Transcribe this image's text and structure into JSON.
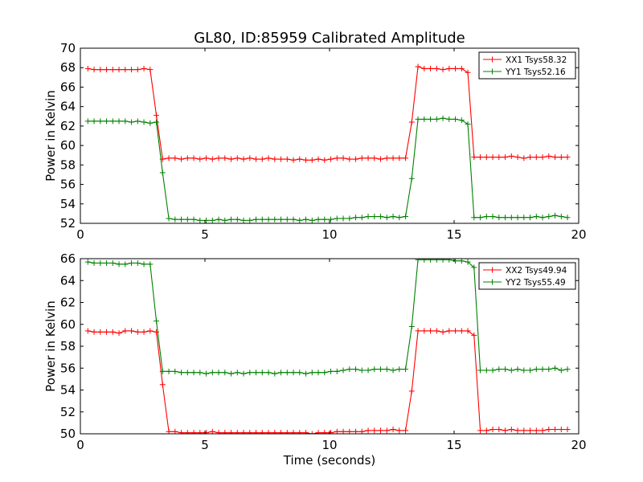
{
  "figure": {
    "title": "GL80, ID:85959 Calibrated Amplitude",
    "xlabel": "Time (seconds)"
  },
  "colors": {
    "red": "#ff0000",
    "green": "#008000",
    "axes": "#000000",
    "background": "#ffffff"
  },
  "chart_data": [
    {
      "type": "line",
      "title": "GL80, ID:85959 Calibrated Amplitude",
      "xlabel": "",
      "ylabel": "Power in Kelvin",
      "xlim": [
        0,
        20
      ],
      "ylim": [
        52,
        70
      ],
      "xticks": [
        0,
        5,
        10,
        15,
        20
      ],
      "yticks": [
        52,
        54,
        56,
        58,
        60,
        62,
        64,
        66,
        68,
        70
      ],
      "grid": false,
      "legend_position": "top-right",
      "series": [
        {
          "name": "XX1 Tsys58.32",
          "color": "#ff0000",
          "marker": "+",
          "x": [
            0.3,
            0.55,
            0.8,
            1.05,
            1.3,
            1.55,
            1.8,
            2.05,
            2.3,
            2.55,
            2.8,
            3.05,
            3.3,
            3.55,
            3.8,
            4.05,
            4.3,
            4.55,
            4.8,
            5.05,
            5.3,
            5.55,
            5.8,
            6.05,
            6.3,
            6.55,
            6.8,
            7.05,
            7.3,
            7.55,
            7.8,
            8.05,
            8.3,
            8.55,
            8.8,
            9.05,
            9.3,
            9.55,
            9.8,
            10.05,
            10.3,
            10.55,
            10.8,
            11.05,
            11.3,
            11.55,
            11.8,
            12.05,
            12.3,
            12.55,
            12.8,
            13.05,
            13.3,
            13.55,
            13.8,
            14.05,
            14.3,
            14.55,
            14.8,
            15.05,
            15.3,
            15.55,
            15.8,
            16.05,
            16.3,
            16.55,
            16.8,
            17.05,
            17.3,
            17.55,
            17.8,
            18.05,
            18.3,
            18.55,
            18.8,
            19.05,
            19.3,
            19.55
          ],
          "values": [
            67.9,
            67.8,
            67.8,
            67.8,
            67.8,
            67.8,
            67.8,
            67.8,
            67.8,
            67.9,
            67.8,
            63.1,
            58.6,
            58.7,
            58.7,
            58.6,
            58.7,
            58.7,
            58.6,
            58.7,
            58.6,
            58.7,
            58.7,
            58.6,
            58.7,
            58.6,
            58.7,
            58.6,
            58.6,
            58.7,
            58.6,
            58.6,
            58.6,
            58.5,
            58.6,
            58.5,
            58.5,
            58.6,
            58.5,
            58.6,
            58.7,
            58.7,
            58.6,
            58.6,
            58.7,
            58.7,
            58.7,
            58.6,
            58.7,
            58.7,
            58.7,
            58.7,
            62.4,
            68.1,
            67.9,
            67.9,
            67.9,
            67.8,
            67.9,
            67.9,
            67.9,
            67.5,
            58.8,
            58.8,
            58.8,
            58.8,
            58.8,
            58.8,
            58.9,
            58.8,
            58.7,
            58.8,
            58.8,
            58.8,
            58.9,
            58.8,
            58.8,
            58.8
          ]
        },
        {
          "name": "YY1 Tsys52.16",
          "color": "#008000",
          "marker": "+",
          "x": [
            0.3,
            0.55,
            0.8,
            1.05,
            1.3,
            1.55,
            1.8,
            2.05,
            2.3,
            2.55,
            2.8,
            3.05,
            3.3,
            3.55,
            3.8,
            4.05,
            4.3,
            4.55,
            4.8,
            5.05,
            5.3,
            5.55,
            5.8,
            6.05,
            6.3,
            6.55,
            6.8,
            7.05,
            7.3,
            7.55,
            7.8,
            8.05,
            8.3,
            8.55,
            8.8,
            9.05,
            9.3,
            9.55,
            9.8,
            10.05,
            10.3,
            10.55,
            10.8,
            11.05,
            11.3,
            11.55,
            11.8,
            12.05,
            12.3,
            12.55,
            12.8,
            13.05,
            13.3,
            13.55,
            13.8,
            14.05,
            14.3,
            14.55,
            14.8,
            15.05,
            15.3,
            15.55,
            15.8,
            16.05,
            16.3,
            16.55,
            16.8,
            17.05,
            17.3,
            17.55,
            17.8,
            18.05,
            18.3,
            18.55,
            18.8,
            19.05,
            19.3,
            19.55
          ],
          "values": [
            62.5,
            62.5,
            62.5,
            62.5,
            62.5,
            62.5,
            62.5,
            62.4,
            62.5,
            62.4,
            62.3,
            62.4,
            57.2,
            52.5,
            52.4,
            52.4,
            52.4,
            52.4,
            52.3,
            52.3,
            52.3,
            52.4,
            52.3,
            52.4,
            52.4,
            52.3,
            52.3,
            52.4,
            52.4,
            52.4,
            52.4,
            52.4,
            52.4,
            52.4,
            52.3,
            52.4,
            52.3,
            52.4,
            52.4,
            52.4,
            52.5,
            52.5,
            52.5,
            52.6,
            52.6,
            52.7,
            52.7,
            52.7,
            52.6,
            52.7,
            52.6,
            52.7,
            56.6,
            62.7,
            62.7,
            62.7,
            62.7,
            62.8,
            62.7,
            62.7,
            62.6,
            62.2,
            52.6,
            52.6,
            52.7,
            52.7,
            52.6,
            52.6,
            52.6,
            52.6,
            52.6,
            52.6,
            52.7,
            52.6,
            52.7,
            52.8,
            52.7,
            52.6
          ]
        }
      ]
    },
    {
      "type": "line",
      "title": "",
      "xlabel": "Time (seconds)",
      "ylabel": "Power in Kelvin",
      "xlim": [
        0,
        20
      ],
      "ylim": [
        50,
        66
      ],
      "xticks": [
        0,
        5,
        10,
        15,
        20
      ],
      "yticks": [
        50,
        52,
        54,
        56,
        58,
        60,
        62,
        64,
        66
      ],
      "grid": false,
      "legend_position": "top-right",
      "series": [
        {
          "name": "XX2 Tsys49.94",
          "color": "#ff0000",
          "marker": "+",
          "x": [
            0.3,
            0.55,
            0.8,
            1.05,
            1.3,
            1.55,
            1.8,
            2.05,
            2.3,
            2.55,
            2.8,
            3.05,
            3.3,
            3.55,
            3.8,
            4.05,
            4.3,
            4.55,
            4.8,
            5.05,
            5.3,
            5.55,
            5.8,
            6.05,
            6.3,
            6.55,
            6.8,
            7.05,
            7.3,
            7.55,
            7.8,
            8.05,
            8.3,
            8.55,
            8.8,
            9.05,
            9.3,
            9.55,
            9.8,
            10.05,
            10.3,
            10.55,
            10.8,
            11.05,
            11.3,
            11.55,
            11.8,
            12.05,
            12.3,
            12.55,
            12.8,
            13.05,
            13.3,
            13.55,
            13.8,
            14.05,
            14.3,
            14.55,
            14.8,
            15.05,
            15.3,
            15.55,
            15.8,
            16.05,
            16.3,
            16.55,
            16.8,
            17.05,
            17.3,
            17.55,
            17.8,
            18.05,
            18.3,
            18.55,
            18.8,
            19.05,
            19.3,
            19.55
          ],
          "values": [
            59.4,
            59.3,
            59.3,
            59.3,
            59.3,
            59.2,
            59.4,
            59.4,
            59.3,
            59.3,
            59.4,
            59.3,
            54.5,
            50.2,
            50.2,
            50.1,
            50.1,
            50.1,
            50.1,
            50.1,
            50.2,
            50.1,
            50.1,
            50.1,
            50.1,
            50.1,
            50.1,
            50.1,
            50.1,
            50.1,
            50.1,
            50.1,
            50.1,
            50.1,
            50.1,
            50.1,
            50.0,
            50.1,
            50.1,
            50.1,
            50.2,
            50.2,
            50.2,
            50.2,
            50.2,
            50.3,
            50.3,
            50.3,
            50.3,
            50.4,
            50.3,
            50.3,
            53.9,
            59.4,
            59.4,
            59.4,
            59.4,
            59.3,
            59.4,
            59.4,
            59.4,
            59.4,
            59.0,
            50.3,
            50.3,
            50.4,
            50.4,
            50.3,
            50.4,
            50.3,
            50.3,
            50.3,
            50.3,
            50.3,
            50.4,
            50.4,
            50.4,
            50.4
          ]
        },
        {
          "name": "YY2 Tsys55.49",
          "color": "#008000",
          "marker": "+",
          "x": [
            0.3,
            0.55,
            0.8,
            1.05,
            1.3,
            1.55,
            1.8,
            2.05,
            2.3,
            2.55,
            2.8,
            3.05,
            3.3,
            3.55,
            3.8,
            4.05,
            4.3,
            4.55,
            4.8,
            5.05,
            5.3,
            5.55,
            5.8,
            6.05,
            6.3,
            6.55,
            6.8,
            7.05,
            7.3,
            7.55,
            7.8,
            8.05,
            8.3,
            8.55,
            8.8,
            9.05,
            9.3,
            9.55,
            9.8,
            10.05,
            10.3,
            10.55,
            10.8,
            11.05,
            11.3,
            11.55,
            11.8,
            12.05,
            12.3,
            12.55,
            12.8,
            13.05,
            13.3,
            13.55,
            13.8,
            14.05,
            14.3,
            14.55,
            14.8,
            15.05,
            15.3,
            15.55,
            15.8,
            16.05,
            16.3,
            16.55,
            16.8,
            17.05,
            17.3,
            17.55,
            17.8,
            18.05,
            18.3,
            18.55,
            18.8,
            19.05,
            19.3,
            19.55
          ],
          "values": [
            65.7,
            65.6,
            65.6,
            65.6,
            65.6,
            65.5,
            65.5,
            65.6,
            65.6,
            65.5,
            65.5,
            60.3,
            55.7,
            55.7,
            55.7,
            55.6,
            55.6,
            55.6,
            55.6,
            55.5,
            55.6,
            55.6,
            55.6,
            55.5,
            55.6,
            55.5,
            55.6,
            55.6,
            55.6,
            55.6,
            55.5,
            55.6,
            55.6,
            55.6,
            55.6,
            55.5,
            55.6,
            55.6,
            55.6,
            55.7,
            55.7,
            55.8,
            55.9,
            55.9,
            55.8,
            55.8,
            55.9,
            55.9,
            55.9,
            55.8,
            55.9,
            55.9,
            59.8,
            65.9,
            65.9,
            65.9,
            65.9,
            65.9,
            65.9,
            65.8,
            65.8,
            65.7,
            65.2,
            55.8,
            55.8,
            55.8,
            55.9,
            55.9,
            55.8,
            55.9,
            55.8,
            55.8,
            55.9,
            55.9,
            55.9,
            56.0,
            55.8,
            55.9
          ]
        }
      ]
    }
  ]
}
